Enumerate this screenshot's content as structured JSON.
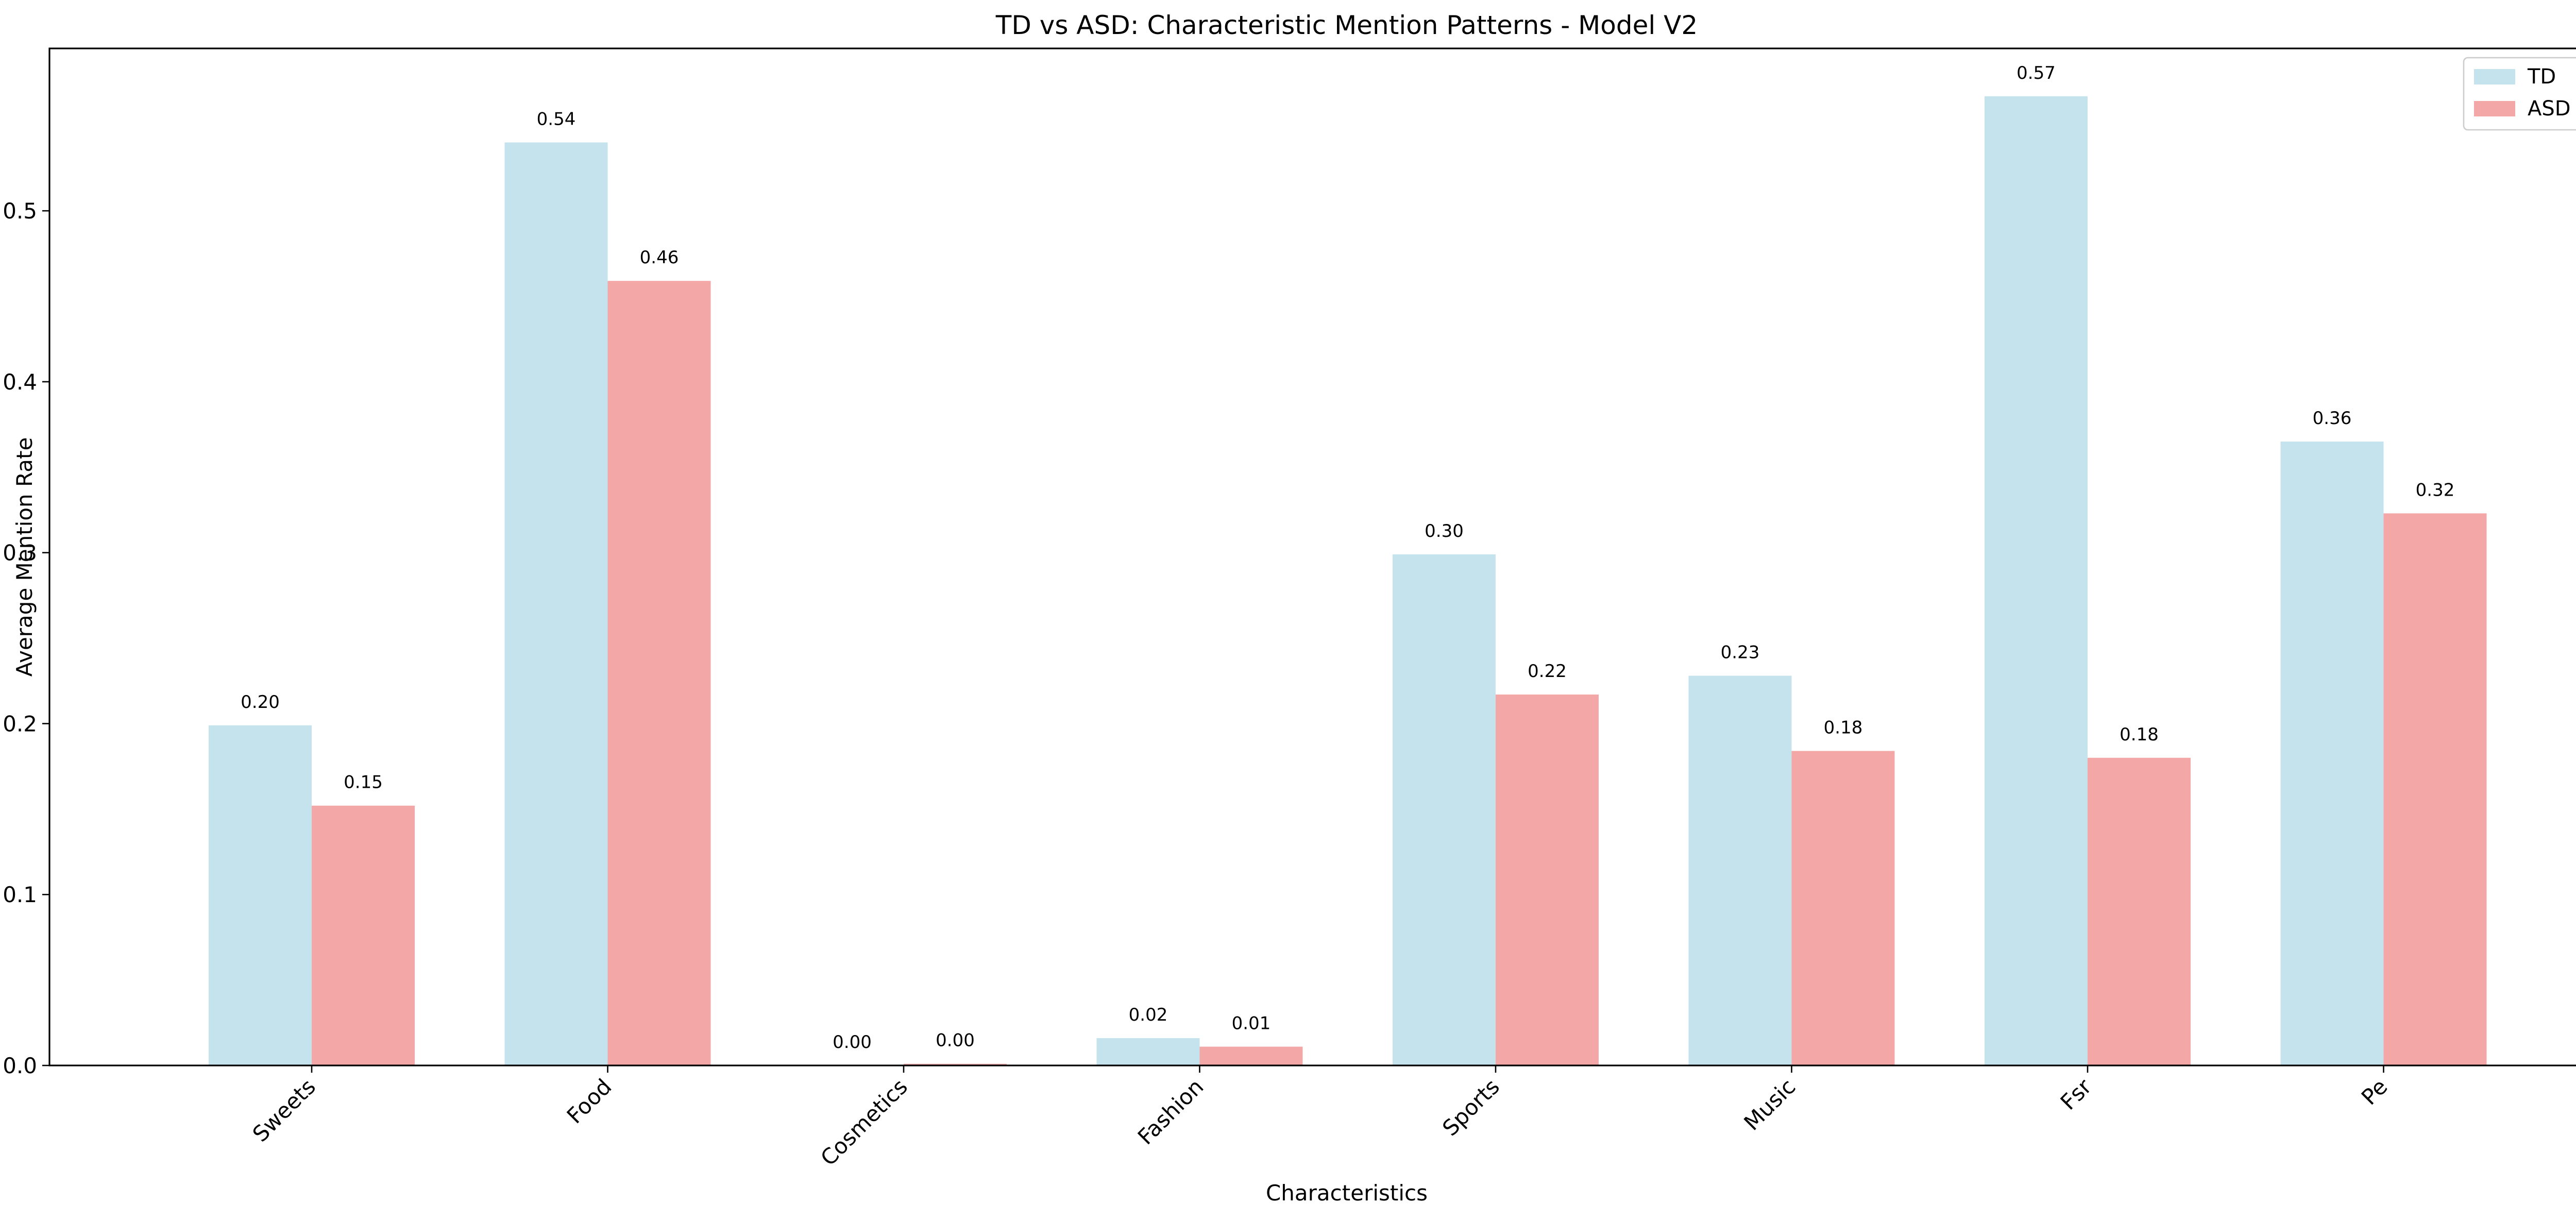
{
  "chart_data": {
    "type": "bar",
    "title": "TD vs ASD: Characteristic Mention Patterns - Model V2",
    "xlabel": "Characteristics",
    "ylabel": "Average Mention Rate",
    "categories": [
      "Sweets",
      "Food",
      "Cosmetics",
      "Fashion",
      "Sports",
      "Music",
      "Fsr",
      "Pe"
    ],
    "series": [
      {
        "name": "TD",
        "color": "#c4e3ec",
        "values": [
          0.199,
          0.54,
          0.0,
          0.016,
          0.299,
          0.228,
          0.567,
          0.365
        ],
        "labels": [
          "0.20",
          "0.54",
          "0.00",
          "0.02",
          "0.30",
          "0.23",
          "0.57",
          "0.36"
        ]
      },
      {
        "name": "ASD",
        "color": "#f3a7a7",
        "values": [
          0.152,
          0.459,
          0.001,
          0.011,
          0.217,
          0.184,
          0.18,
          0.323
        ],
        "labels": [
          "0.15",
          "0.46",
          "0.00",
          "0.01",
          "0.22",
          "0.18",
          "0.18",
          "0.32"
        ]
      }
    ],
    "ylim": [
      0,
      0.595
    ],
    "yticks": [
      0.0,
      0.1,
      0.2,
      0.3,
      0.4,
      0.5
    ],
    "ytick_labels": [
      "0.0",
      "0.1",
      "0.2",
      "0.3",
      "0.4",
      "0.5"
    ],
    "grid": false,
    "legend_position": "top-right",
    "xtick_rotation_deg": 45
  }
}
